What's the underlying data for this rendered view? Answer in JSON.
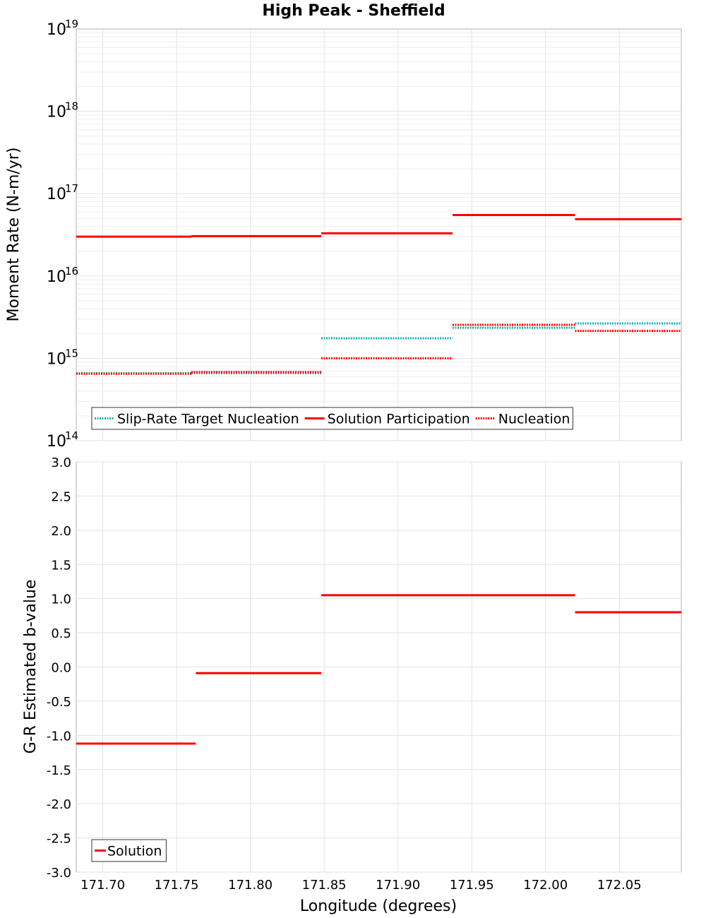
{
  "title": "High Peak - Sheffield",
  "chart_data": [
    {
      "type": "line",
      "ylabel": "Moment Rate (N-m/yr)",
      "yscale": "log",
      "ylim": [
        100000000000000.0,
        1e+19
      ],
      "yticks": [
        {
          "base": "10",
          "exp": "14",
          "value": 100000000000000.0
        },
        {
          "base": "10",
          "exp": "15",
          "value": 1000000000000000.0
        },
        {
          "base": "10",
          "exp": "16",
          "value": 1e+16
        },
        {
          "base": "10",
          "exp": "17",
          "value": 1e+17
        },
        {
          "base": "10",
          "exp": "18",
          "value": 1e+18
        },
        {
          "base": "10",
          "exp": "19",
          "value": 1e+19
        }
      ],
      "xlim": [
        171.682,
        172.092
      ],
      "grid": true,
      "legend_position": "bottom-left",
      "series": [
        {
          "name": "Slip-Rate Target Nucleation",
          "color": "#11b0b8",
          "style": "dotted",
          "segments": [
            {
              "x": [
                171.682,
                171.76
              ],
              "y": 660000000000000.0
            },
            {
              "x": [
                171.76,
                171.848
              ],
              "y": 660000000000000.0
            },
            {
              "x": [
                171.848,
                171.937
              ],
              "y": 1750000000000000.0
            },
            {
              "x": [
                171.937,
                172.02
              ],
              "y": 2350000000000000.0
            },
            {
              "x": [
                172.02,
                172.092
              ],
              "y": 2650000000000000.0
            }
          ]
        },
        {
          "name": "Solution Participation",
          "color": "#ff0000",
          "style": "solid",
          "segments": [
            {
              "x": [
                171.682,
                171.76
              ],
              "y": 3e+16
            },
            {
              "x": [
                171.76,
                171.848
              ],
              "y": 3.05e+16
            },
            {
              "x": [
                171.848,
                171.937
              ],
              "y": 3.3e+16
            },
            {
              "x": [
                171.937,
                172.02
              ],
              "y": 5.5e+16
            },
            {
              "x": [
                172.02,
                172.092
              ],
              "y": 4.9e+16
            }
          ]
        },
        {
          "name": "Nucleation",
          "color": "#ff0000",
          "style": "dotted",
          "segments": [
            {
              "x": [
                171.682,
                171.76
              ],
              "y": 650000000000000.0
            },
            {
              "x": [
                171.76,
                171.848
              ],
              "y": 680000000000000.0
            },
            {
              "x": [
                171.848,
                171.937
              ],
              "y": 1000000000000000.0
            },
            {
              "x": [
                171.937,
                172.02
              ],
              "y": 2550000000000000.0
            },
            {
              "x": [
                172.02,
                172.092
              ],
              "y": 2150000000000000.0
            }
          ]
        }
      ]
    },
    {
      "type": "line",
      "ylabel": "G-R Estimated b-value",
      "xlabel": "Longitude (degrees)",
      "ylim": [
        -3.0,
        3.0
      ],
      "yticks": [
        "-3.0",
        "-2.5",
        "-2.0",
        "-1.5",
        "-1.0",
        "-0.5",
        "0.0",
        "0.5",
        "1.0",
        "1.5",
        "2.0",
        "2.5",
        "3.0"
      ],
      "xlim": [
        171.682,
        172.092
      ],
      "xticks": [
        "171.70",
        "171.75",
        "171.80",
        "171.85",
        "171.90",
        "171.95",
        "172.00",
        "172.05"
      ],
      "grid": true,
      "legend_position": "bottom-left",
      "series": [
        {
          "name": "Solution",
          "color": "#ff0000",
          "style": "solid",
          "segments": [
            {
              "x": [
                171.682,
                171.763
              ],
              "y": -1.12
            },
            {
              "x": [
                171.763,
                171.848
              ],
              "y": -0.09
            },
            {
              "x": [
                171.848,
                171.937
              ],
              "y": 1.05
            },
            {
              "x": [
                171.937,
                172.02
              ],
              "y": 1.05
            },
            {
              "x": [
                172.02,
                172.092
              ],
              "y": 0.8
            }
          ]
        }
      ]
    }
  ]
}
